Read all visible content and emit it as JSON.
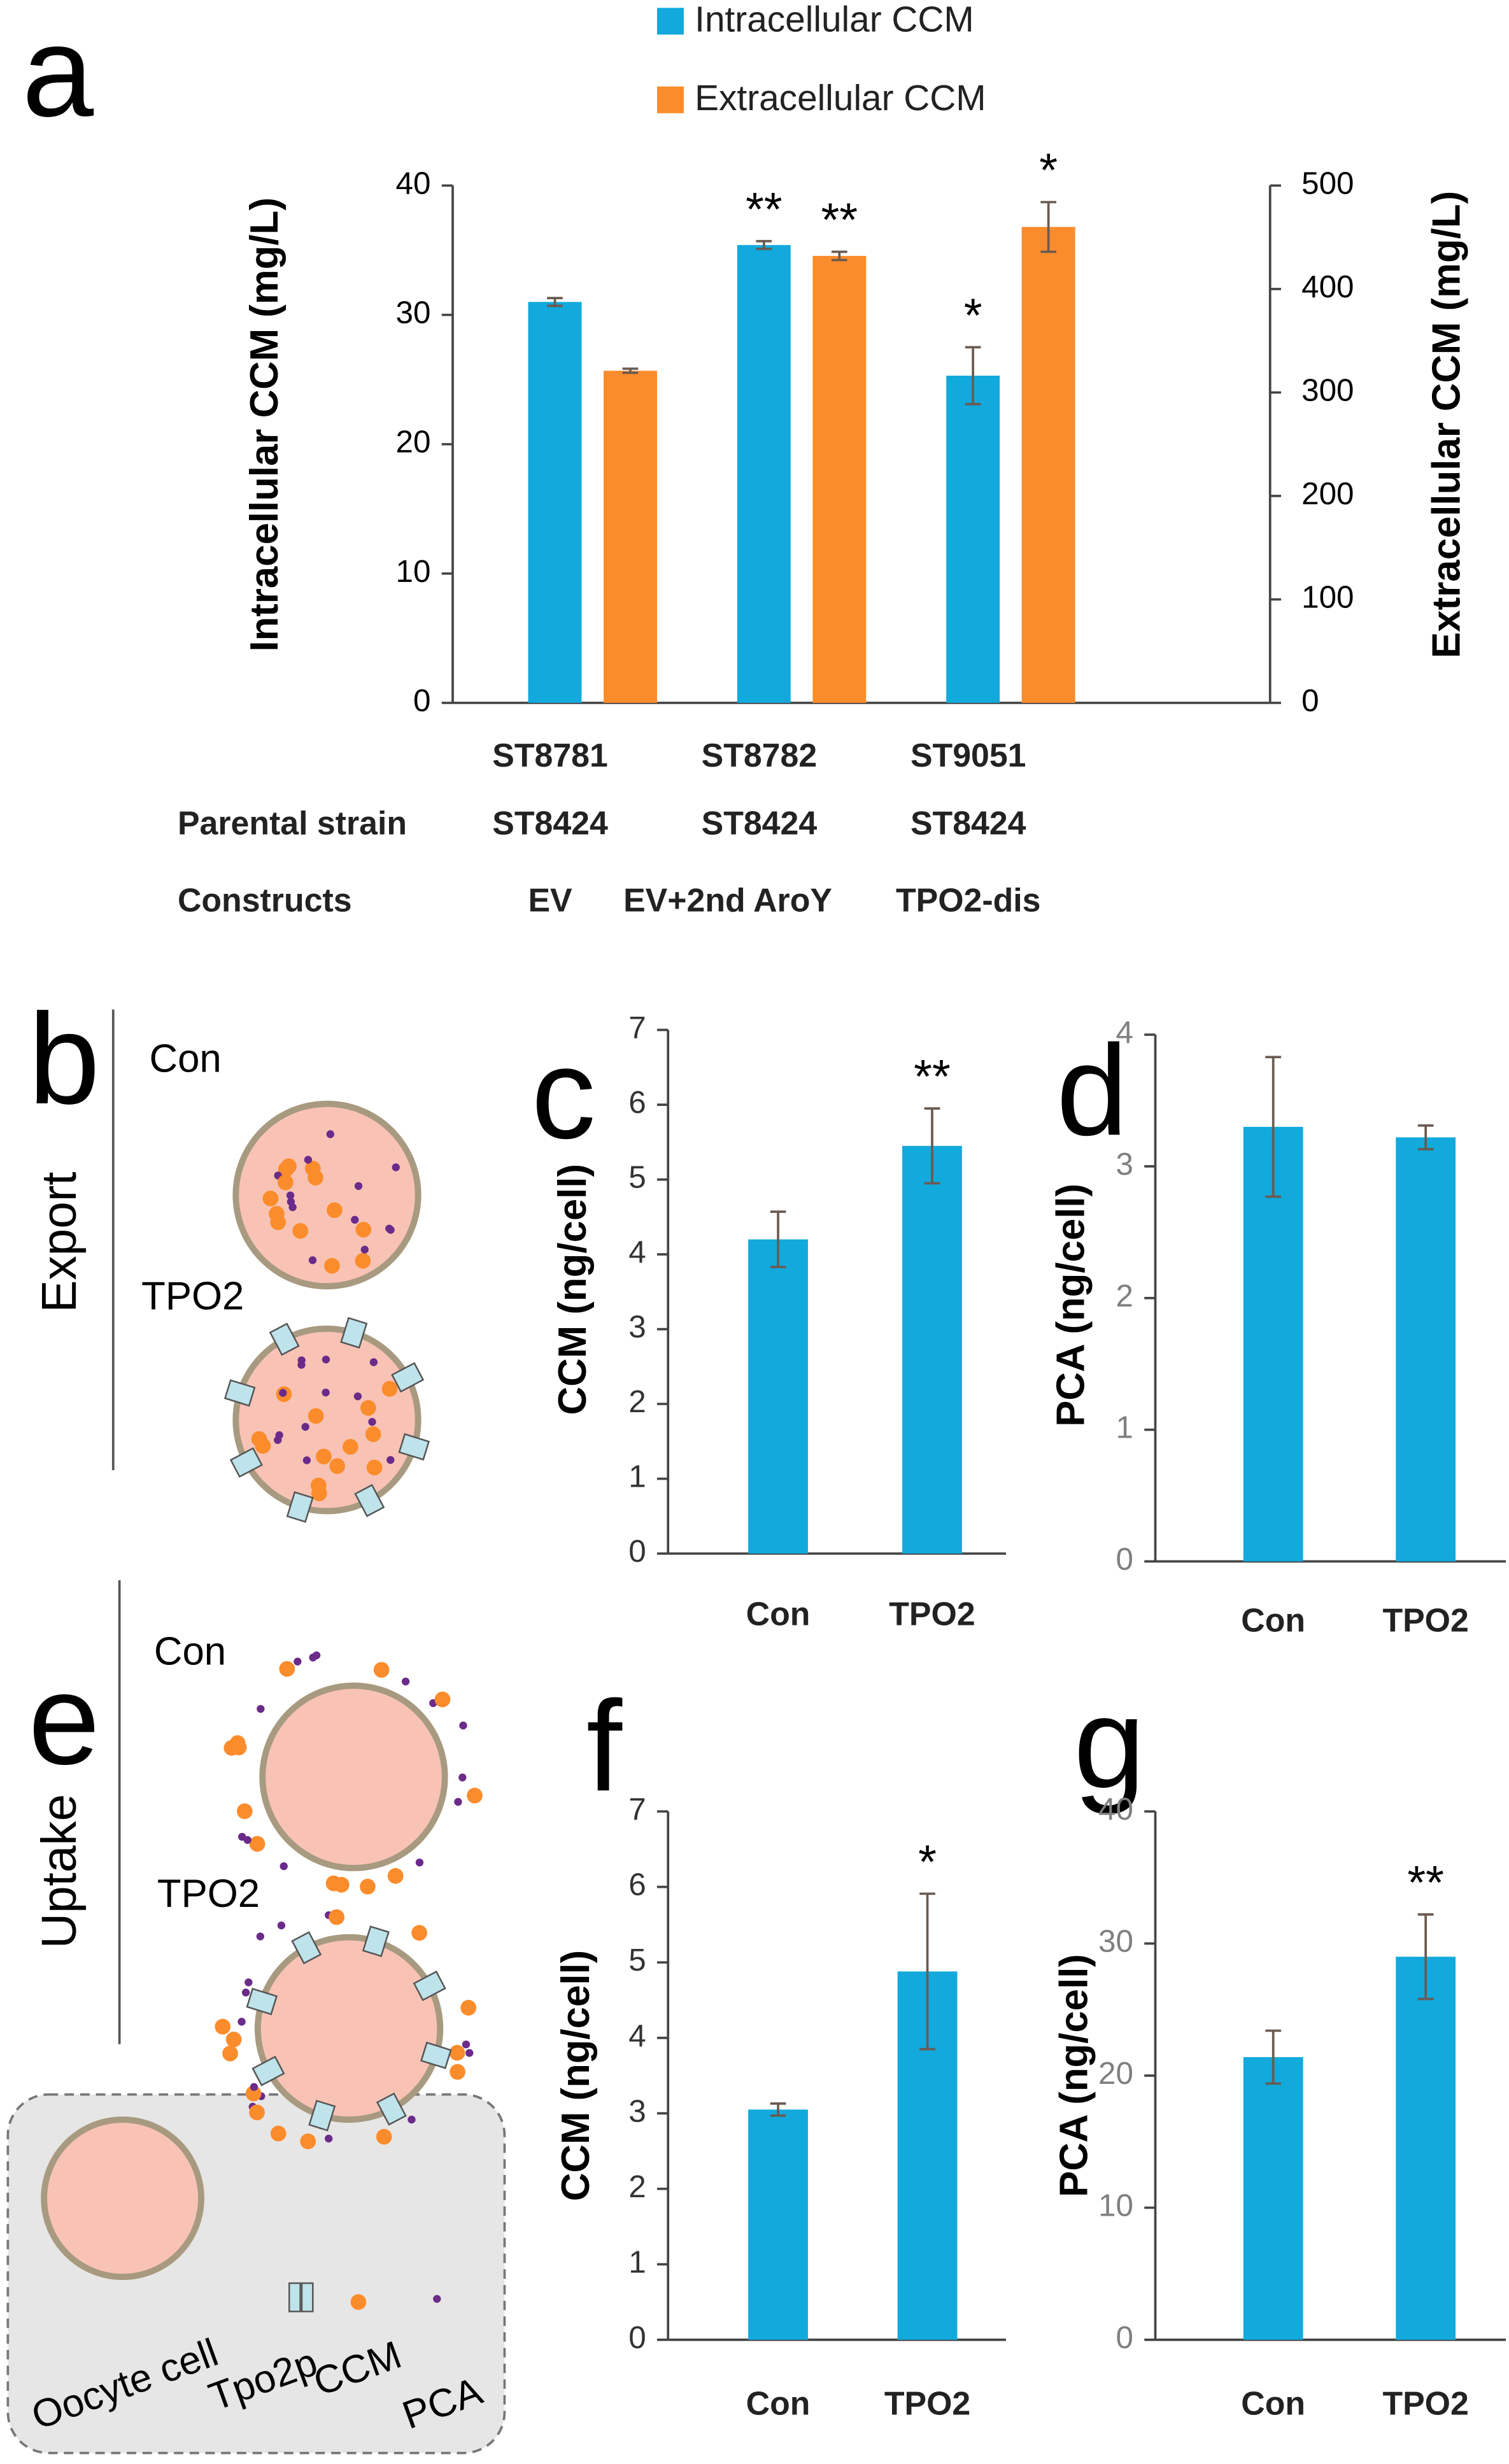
{
  "chart_data": [
    {
      "type": "bar",
      "panel": "a",
      "categories": [
        "ST8781",
        "ST8782",
        "ST9051"
      ],
      "rows": [
        {
          "label": "Parental strain",
          "cells": [
            "ST8424",
            "ST8424",
            "ST8424"
          ]
        },
        {
          "label": "Constructs",
          "cells": [
            "EV",
            "EV+2nd AroY",
            "TPO2-dis"
          ]
        }
      ],
      "ylabel": "Intracellular CCM (mg/L)",
      "y2label": "Extracellular CCM (mg/L)",
      "ylim": [
        0,
        40
      ],
      "yticks": [
        0,
        10,
        20,
        30,
        40
      ],
      "y2lim": [
        0,
        500
      ],
      "y2ticks": [
        0,
        100,
        200,
        300,
        400,
        500
      ],
      "series": [
        {
          "name": "Intracellular CCM",
          "color": "#12a9dc",
          "values": [
            31,
            35.4,
            25.3
          ],
          "errors": [
            0.3,
            0.3,
            2.2
          ],
          "significance": [
            null,
            "**",
            "*"
          ]
        },
        {
          "name": "Extracellular CCM",
          "color": "#fb8c2c",
          "axis": "y2",
          "values": [
            321,
            432,
            460
          ],
          "errors": [
            2,
            4,
            24
          ],
          "significance": [
            null,
            "**",
            "*"
          ]
        }
      ],
      "tick_color": "#000"
    },
    {
      "type": "bar",
      "panel": "c",
      "categories": [
        "Con",
        "TPO2"
      ],
      "ylabel": "CCM (ng/cell)",
      "ylim": [
        0,
        7
      ],
      "yticks": [
        0,
        1,
        2,
        3,
        4,
        5,
        6,
        7
      ],
      "color": "#12a9dc",
      "values": [
        4.2,
        5.45
      ],
      "errors": [
        0.37,
        0.5
      ],
      "significance": [
        null,
        "**"
      ],
      "tick_color": "#333"
    },
    {
      "type": "bar",
      "panel": "d",
      "categories": [
        "Con",
        "TPO2"
      ],
      "ylabel": "PCA (ng/cell)",
      "ylim": [
        0,
        4
      ],
      "yticks": [
        0,
        1,
        2,
        3,
        4
      ],
      "color": "#12a9dc",
      "values": [
        3.3,
        3.22
      ],
      "errors": [
        0.53,
        0.09
      ],
      "significance": [
        null,
        null
      ],
      "tick_color": "#7f7f7f"
    },
    {
      "type": "bar",
      "panel": "f",
      "categories": [
        "Con",
        "TPO2"
      ],
      "ylabel": "CCM (ng/cell)",
      "ylim": [
        0,
        7
      ],
      "yticks": [
        0,
        1,
        2,
        3,
        4,
        5,
        6,
        7
      ],
      "color": "#12a9dc",
      "values": [
        3.05,
        4.88
      ],
      "errors": [
        0.08,
        1.03
      ],
      "significance": [
        null,
        "*"
      ],
      "tick_color": "#333"
    },
    {
      "type": "bar",
      "panel": "g",
      "categories": [
        "Con",
        "TPO2"
      ],
      "ylabel": "PCA (ng/cell)",
      "ylim": [
        0,
        40
      ],
      "yticks": [
        0,
        10,
        20,
        30,
        40
      ],
      "color": "#12a9dc",
      "values": [
        21.4,
        29
      ],
      "errors": [
        2,
        3.2
      ],
      "significance": [
        null,
        "**"
      ],
      "tick_color": "#7f7f7f"
    }
  ],
  "diagram": {
    "export": {
      "panel": "b",
      "label": "Export",
      "con": "Con",
      "tpo2": "TPO2"
    },
    "uptake": {
      "panel": "e",
      "label": "Uptake",
      "con": "Con",
      "tpo2": "TPO2"
    },
    "legend": {
      "oocyte": "Oocyte cell",
      "transporter": "Tpo2p",
      "ccm": "CCM",
      "pca": "PCA"
    }
  }
}
